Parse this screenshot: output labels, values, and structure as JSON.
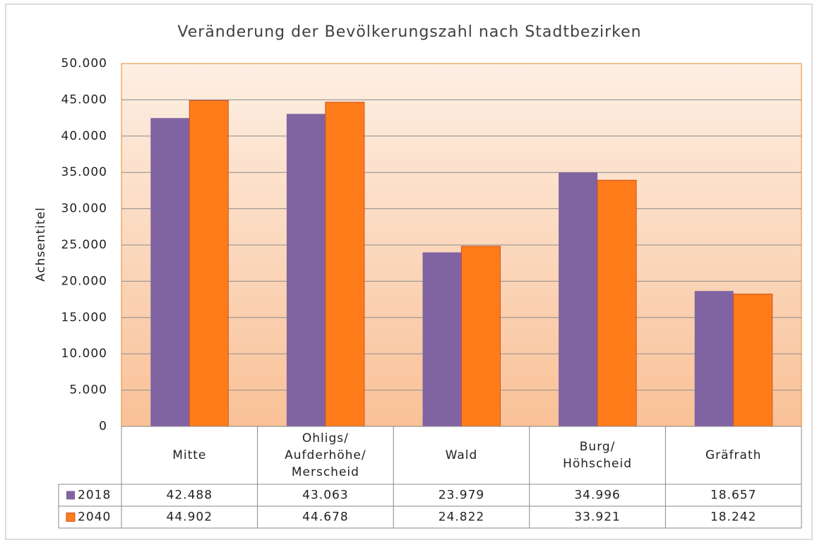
{
  "chart_data": {
    "type": "bar",
    "title": "Veränderung der Bevölkerungszahl nach Stadtbezirken",
    "y_label": "Achsentitel",
    "categories": [
      [
        "Mitte"
      ],
      [
        "Ohligs/",
        "Aufderhöhe/",
        "Merscheid"
      ],
      [
        "Wald"
      ],
      [
        "Burg/",
        "Höhscheid"
      ],
      [
        "Gräfrath"
      ]
    ],
    "series": [
      {
        "name": "2018",
        "color": "#8064a2",
        "values": [
          42488,
          43063,
          23979,
          34996,
          18657
        ],
        "value_labels": [
          "42.488",
          "43.063",
          "23.979",
          "34.996",
          "18.657"
        ]
      },
      {
        "name": "2040",
        "color": "#ff7c1a",
        "values": [
          44902,
          44678,
          24822,
          33921,
          18242
        ],
        "value_labels": [
          "44.902",
          "44.678",
          "24.822",
          "33.921",
          "18.242"
        ]
      }
    ],
    "ylim": [
      0,
      50000
    ],
    "yticks": [
      0,
      {
        "value": 5000,
        "label": "5.000"
      },
      {
        "value": 10000,
        "label": "10.000"
      },
      {
        "value": 15000,
        "label": "15.000"
      },
      {
        "value": 20000,
        "label": "20.000"
      },
      {
        "value": 25000,
        "label": "25.000"
      },
      {
        "value": 30000,
        "label": "30.000"
      },
      {
        "value": 35000,
        "label": "35.000"
      },
      {
        "value": 40000,
        "label": "40.000"
      },
      {
        "value": 45000,
        "label": "45.000"
      },
      {
        "value": 50000,
        "label": "50.000"
      }
    ],
    "grid": true,
    "data_table": true
  }
}
